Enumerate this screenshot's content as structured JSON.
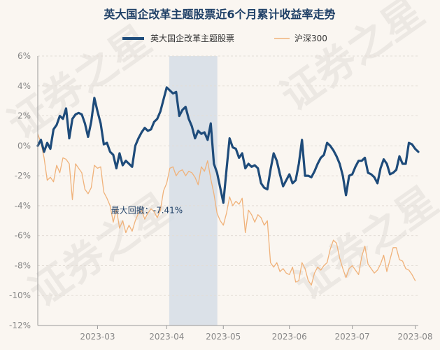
{
  "chart_data": {
    "type": "line",
    "title": "英大国企改革主题股票近6个月累计收益率走势",
    "watermark": "证券之星",
    "ylim": [
      -12,
      6
    ],
    "yticks": [
      6,
      4,
      2,
      0,
      -2,
      -4,
      -6,
      -8,
      -10,
      -12
    ],
    "ytick_labels": [
      "6%",
      "4%",
      "2%",
      "0%",
      "-2%",
      "-4%",
      "-6%",
      "-8%",
      "-10%",
      "-12%"
    ],
    "xlim": [
      0,
      121
    ],
    "xticks": [
      {
        "x": 19,
        "label": "2023-03"
      },
      {
        "x": 41,
        "label": "2023-04"
      },
      {
        "x": 59,
        "label": "2023-05"
      },
      {
        "x": 80,
        "label": "2023-06"
      },
      {
        "x": 100,
        "label": "2023-07"
      },
      {
        "x": 120,
        "label": "2023-08"
      }
    ],
    "legend": {
      "position": "top"
    },
    "colors": {
      "fund": "#1e4b7a",
      "index": "#f0b27a",
      "band": "#d5dde6"
    },
    "annotation": {
      "text": "最大回撤：-7.41%",
      "x": 23.3,
      "y": -4.3,
      "band_start": 41.8,
      "band_end": 57.1
    },
    "series": [
      {
        "name": "英大国企改革主题股票",
        "key": "fund",
        "values": [
          0,
          0.4,
          -0.4,
          0.2,
          -0.2,
          1.1,
          1.4,
          2.0,
          1.8,
          2.5,
          0.5,
          1.8,
          2.1,
          2.2,
          2.1,
          1.5,
          0.6,
          1.6,
          3.2,
          2.3,
          1.5,
          0.1,
          0.2,
          -0.4,
          -0.6,
          -1.5,
          -0.5,
          -1.3,
          -1.0,
          -1.2,
          -1.4,
          0,
          0.5,
          0.9,
          1.2,
          1.0,
          1.1,
          1.6,
          1.8,
          2.3,
          3.1,
          3.9,
          3.7,
          3.5,
          3.6,
          2.0,
          2.4,
          2.6,
          1.8,
          1.3,
          0.5,
          1.0,
          0.8,
          0.9,
          0.4,
          1.5,
          -1.2,
          -1.8,
          -2.8,
          -3.8,
          -1.6,
          0.5,
          -0.1,
          -0.2,
          -0.8,
          -0.5,
          -1.5,
          -1.2,
          -1.4,
          -1.3,
          -1.5,
          -2.5,
          -2.8,
          -2.9,
          -1.6,
          -0.5,
          -1.0,
          -1.9,
          -2.7,
          -2.3,
          -1.9,
          -2.5,
          -2.3,
          -1.2,
          0.4,
          -2.0,
          -2.0,
          -2.1,
          -1.7,
          -1.2,
          -0.8,
          -0.6,
          0.2,
          0,
          -0.3,
          -0.7,
          -1.2,
          -2.0,
          -3.3,
          -2.0,
          -1.9,
          -1.4,
          -1.0,
          -1.0,
          -0.8,
          -1.8,
          -1.9,
          -2.1,
          -2.5,
          -1.5,
          -0.9,
          -1.2,
          -1.9,
          -1.8,
          -1.6,
          -0.7,
          -1.2,
          -1.2,
          0.2,
          0.1,
          -0.2,
          -0.4
        ]
      },
      {
        "name": "沪深300",
        "key": "index",
        "values": [
          0.8,
          0.2,
          -0.8,
          -2.3,
          -2.1,
          -2.4,
          -1.3,
          -1.8,
          -0.8,
          -0.9,
          -1.2,
          -3.6,
          -1.2,
          -1.5,
          -1.8,
          -2.9,
          -3.2,
          -2.8,
          -1.3,
          -1.5,
          -1.4,
          -3.1,
          -3.5,
          -4.0,
          -5.1,
          -4.2,
          -5.5,
          -5.0,
          -5.8,
          -5.3,
          -5.7,
          -5.0,
          -4.5,
          -4.3,
          -4.9,
          -4.5,
          -4.2,
          -4.4,
          -4.8,
          -4.3,
          -3.0,
          -2.5,
          -1.5,
          -1.4,
          -2.0,
          -1.7,
          -1.6,
          -2.0,
          -1.7,
          -1.8,
          -2.1,
          -2.6,
          -1.4,
          -1.7,
          -1.0,
          -2.2,
          -3.2,
          -4.5,
          -5.0,
          -5.3,
          -4.5,
          -3.4,
          -4.0,
          -3.7,
          -3.9,
          -3.5,
          -5.8,
          -4.3,
          -4.6,
          -5.1,
          -4.6,
          -4.8,
          -5.3,
          -5.0,
          -7.8,
          -8.1,
          -7.8,
          -8.4,
          -8.2,
          -8.5,
          -8.6,
          -8.1,
          -9.1,
          -9.0,
          -7.8,
          -8.2,
          -9.0,
          -9.3,
          -8.5,
          -8.1,
          -8.3,
          -8.0,
          -7.8,
          -6.9,
          -6.3,
          -6.5,
          -7.5,
          -8.2,
          -8.8,
          -8.2,
          -8.0,
          -8.3,
          -8.6,
          -7.4,
          -6.7,
          -7.9,
          -8.2,
          -8.5,
          -8.3,
          -7.9,
          -7.3,
          -8.4,
          -7.6,
          -6.8,
          -6.8,
          -7.6,
          -7.7,
          -8.2,
          -8.3,
          -8.6,
          -9.0
        ]
      }
    ]
  }
}
